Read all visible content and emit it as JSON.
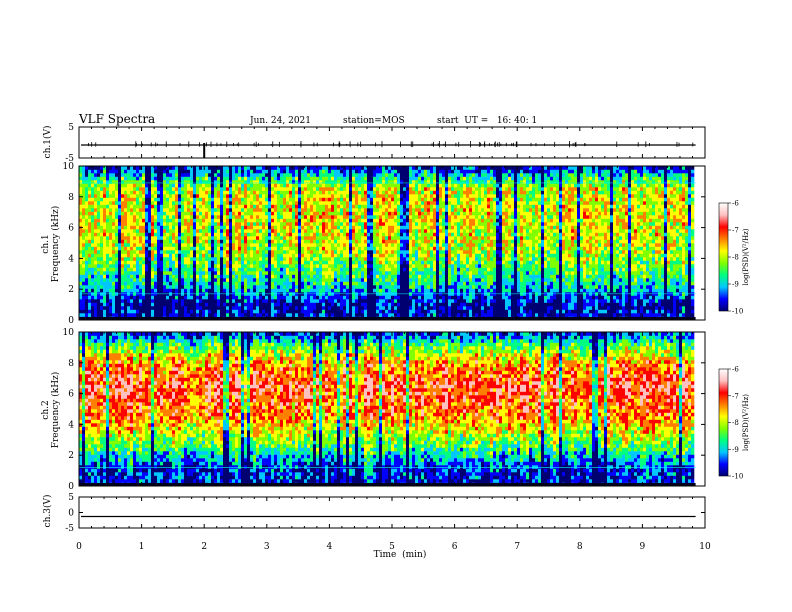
{
  "header": {
    "title": "VLF Spectra",
    "date": "Jun. 24, 2021",
    "station": "station=MOS",
    "start": "start  UT =   16: 40: 1"
  },
  "chart_data": [
    {
      "type": "line",
      "panel": "ch1-waveform",
      "ylabel": "ch.1(V)",
      "ylim": [
        -5,
        5
      ],
      "yticks": [
        "5",
        "-5"
      ],
      "x": [
        0,
        10
      ],
      "y_level": -0.8
    },
    {
      "type": "heatmap",
      "panel": "ch1-spectrogram",
      "ylabel": "ch.1\nFrequency (kHz)",
      "ylabel_line1": "ch.1",
      "ylabel_line2": "Frequency (kHz)",
      "ylim": [
        0,
        10
      ],
      "yticks": [
        "0",
        "2",
        "4",
        "6",
        "8",
        "10"
      ],
      "xlim": [
        0,
        10
      ],
      "x_data_end": 9.85,
      "colorbar": {
        "label": "log(PSD)(V²/Hz)",
        "ticks": [
          "-6",
          "-7",
          "-8",
          "-9",
          "-10"
        ],
        "range": [
          -10,
          -6
        ]
      },
      "profile": [
        {
          "f": 0.3,
          "level": -9.5
        },
        {
          "f": 1.0,
          "level": -9.6
        },
        {
          "f": 2.5,
          "level": -8.6
        },
        {
          "f": 4.5,
          "level": -7.8
        },
        {
          "f": 6.5,
          "level": -7.6
        },
        {
          "f": 8.5,
          "level": -7.7
        },
        {
          "f": 9.3,
          "level": -8.6
        },
        {
          "f": 10.0,
          "level": -9.6
        }
      ]
    },
    {
      "type": "heatmap",
      "panel": "ch2-spectrogram",
      "ylabel_line1": "ch.2",
      "ylabel_line2": "Frequency (kHz)",
      "ylim": [
        0,
        10
      ],
      "yticks": [
        "0",
        "2",
        "4",
        "6",
        "8",
        "10"
      ],
      "xlim": [
        0,
        10
      ],
      "x_data_end": 9.85,
      "colorbar": {
        "label": "log(PSD)(V²/Hz)",
        "ticks": [
          "-6",
          "-7",
          "-8",
          "-9",
          "-10"
        ],
        "range": [
          -10,
          -6
        ]
      },
      "profile": [
        {
          "f": 0.3,
          "level": -9.4
        },
        {
          "f": 1.2,
          "level": -9.3
        },
        {
          "f": 2.5,
          "level": -8.3
        },
        {
          "f": 4.5,
          "level": -7.1
        },
        {
          "f": 6.5,
          "level": -6.6
        },
        {
          "f": 8.0,
          "level": -7.2
        },
        {
          "f": 9.2,
          "level": -8.3
        },
        {
          "f": 10.0,
          "level": -9.4
        }
      ]
    },
    {
      "type": "line",
      "panel": "ch3-waveform",
      "ylabel": "ch.3(V)",
      "ylim": [
        -5,
        5
      ],
      "yticks": [
        "5",
        "0",
        "-5"
      ],
      "x": [
        0,
        10
      ],
      "y_level": -1.3
    }
  ],
  "xaxis": {
    "label": "Time  (min)",
    "ticks": [
      "0",
      "1",
      "2",
      "3",
      "4",
      "5",
      "6",
      "7",
      "8",
      "9",
      "10"
    ],
    "range": [
      0,
      10
    ]
  },
  "colors": {
    "colormap": [
      "#000070",
      "#0000ff",
      "#00c8ff",
      "#00ff80",
      "#80ff00",
      "#ffff00",
      "#ff8000",
      "#ff0000",
      "#ffc0c0",
      "#ffffff"
    ],
    "marker_line": "#00ffff"
  }
}
